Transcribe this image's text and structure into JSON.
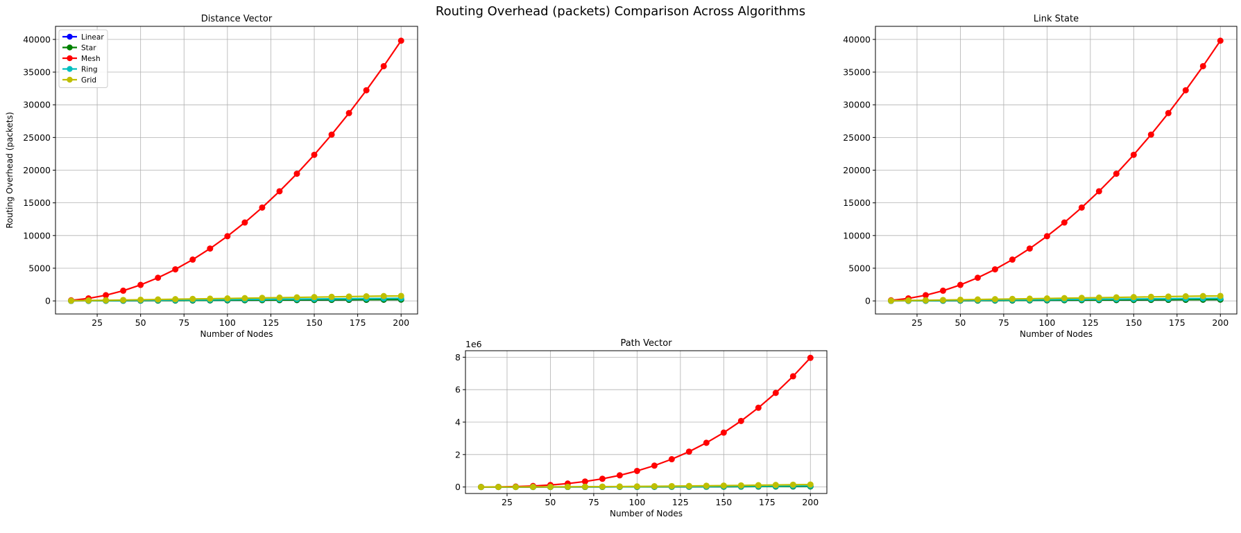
{
  "suptitle": "Routing Overhead (packets) Comparison Across Algorithms",
  "colors": {
    "Linear": "#0000ff",
    "Star": "#008000",
    "Mesh": "#ff0000",
    "Ring": "#00bfbf",
    "Grid": "#bfbf00"
  },
  "chart_data": [
    {
      "type": "line",
      "title": "Distance Vector",
      "xlabel": "Number of Nodes",
      "ylabel": "Routing Overhead (packets)",
      "xlim": [
        1,
        209.5
      ],
      "ylim": [
        -2000,
        42000
      ],
      "xticks": [
        25,
        50,
        75,
        100,
        125,
        150,
        175,
        200
      ],
      "yticks": [
        0,
        5000,
        10000,
        15000,
        20000,
        25000,
        30000,
        35000,
        40000
      ],
      "y_offset_label": "",
      "grid": true,
      "legend": "top-left",
      "x": [
        10,
        20,
        30,
        40,
        50,
        60,
        70,
        80,
        90,
        100,
        110,
        120,
        130,
        140,
        150,
        160,
        170,
        180,
        190,
        200
      ],
      "series": [
        {
          "name": "Linear",
          "values": [
            10,
            20,
            30,
            40,
            50,
            60,
            70,
            80,
            90,
            100,
            110,
            120,
            130,
            140,
            150,
            160,
            170,
            180,
            190,
            200
          ]
        },
        {
          "name": "Star",
          "values": [
            10,
            20,
            30,
            40,
            50,
            60,
            70,
            80,
            90,
            100,
            110,
            120,
            130,
            140,
            150,
            160,
            170,
            180,
            190,
            200
          ]
        },
        {
          "name": "Mesh",
          "values": [
            90,
            380,
            870,
            1560,
            2450,
            3540,
            4830,
            6320,
            8010,
            9900,
            11990,
            14280,
            16770,
            19460,
            22350,
            25440,
            28730,
            32220,
            35910,
            39800
          ]
        },
        {
          "name": "Ring",
          "values": [
            20,
            40,
            60,
            80,
            100,
            120,
            140,
            160,
            180,
            200,
            220,
            240,
            260,
            280,
            300,
            320,
            340,
            360,
            380,
            400
          ]
        },
        {
          "name": "Grid",
          "values": [
            30,
            70,
            100,
            140,
            180,
            220,
            260,
            300,
            340,
            380,
            420,
            460,
            500,
            540,
            580,
            620,
            660,
            700,
            740,
            760
          ]
        }
      ]
    },
    {
      "type": "line",
      "title": "Link State",
      "xlabel": "Number of Nodes",
      "ylabel": "",
      "xlim": [
        1,
        209.5
      ],
      "ylim": [
        -2000,
        42000
      ],
      "xticks": [
        25,
        50,
        75,
        100,
        125,
        150,
        175,
        200
      ],
      "yticks": [
        0,
        5000,
        10000,
        15000,
        20000,
        25000,
        30000,
        35000,
        40000
      ],
      "y_offset_label": "",
      "grid": true,
      "legend": "",
      "x": [
        10,
        20,
        30,
        40,
        50,
        60,
        70,
        80,
        90,
        100,
        110,
        120,
        130,
        140,
        150,
        160,
        170,
        180,
        190,
        200
      ],
      "series": [
        {
          "name": "Linear",
          "values": [
            10,
            20,
            30,
            40,
            50,
            60,
            70,
            80,
            90,
            100,
            110,
            120,
            130,
            140,
            150,
            160,
            170,
            180,
            190,
            200
          ]
        },
        {
          "name": "Star",
          "values": [
            10,
            20,
            30,
            40,
            50,
            60,
            70,
            80,
            90,
            100,
            110,
            120,
            130,
            140,
            150,
            160,
            170,
            180,
            190,
            200
          ]
        },
        {
          "name": "Mesh",
          "values": [
            90,
            380,
            870,
            1560,
            2450,
            3540,
            4830,
            6320,
            8010,
            9900,
            11990,
            14280,
            16770,
            19460,
            22350,
            25440,
            28730,
            32220,
            35910,
            39800
          ]
        },
        {
          "name": "Ring",
          "values": [
            20,
            40,
            60,
            80,
            100,
            120,
            140,
            160,
            180,
            200,
            220,
            240,
            260,
            280,
            300,
            320,
            340,
            360,
            380,
            400
          ]
        },
        {
          "name": "Grid",
          "values": [
            30,
            70,
            100,
            140,
            180,
            220,
            260,
            300,
            340,
            380,
            420,
            460,
            500,
            540,
            580,
            620,
            660,
            700,
            740,
            760
          ]
        }
      ]
    },
    {
      "type": "line",
      "title": "Path Vector",
      "xlabel": "Number of Nodes",
      "ylabel": "",
      "xlim": [
        1,
        209.5
      ],
      "ylim": [
        -400000,
        8400000
      ],
      "xticks": [
        25,
        50,
        75,
        100,
        125,
        150,
        175,
        200
      ],
      "yticks": [
        0,
        2000000,
        4000000,
        6000000,
        8000000
      ],
      "ytick_labels": [
        "0",
        "2",
        "4",
        "6",
        "8"
      ],
      "y_offset_label": "1e6",
      "grid": true,
      "legend": "",
      "x": [
        10,
        20,
        30,
        40,
        50,
        60,
        70,
        80,
        90,
        100,
        110,
        120,
        130,
        140,
        150,
        160,
        170,
        180,
        190,
        200
      ],
      "series": [
        {
          "name": "Linear",
          "values": [
            100,
            400,
            900,
            1600,
            2500,
            3600,
            4900,
            6400,
            8100,
            10000,
            12100,
            14400,
            16900,
            19600,
            22500,
            25600,
            28900,
            32400,
            36100,
            40000
          ]
        },
        {
          "name": "Star",
          "values": [
            100,
            400,
            900,
            1600,
            2500,
            3600,
            4900,
            6400,
            8100,
            10000,
            12100,
            14400,
            16900,
            19600,
            22500,
            25600,
            28900,
            32400,
            36100,
            40000
          ]
        },
        {
          "name": "Mesh",
          "values": [
            900,
            7600,
            26100,
            62400,
            122500,
            212400,
            338100,
            505600,
            720900,
            990000,
            1318900,
            1713600,
            2180100,
            2724400,
            3352500,
            4070400,
            4884100,
            5799600,
            6822900,
            7960000
          ]
        },
        {
          "name": "Ring",
          "values": [
            200,
            800,
            1800,
            3200,
            5000,
            7200,
            9800,
            12800,
            16200,
            20000,
            24200,
            28800,
            33800,
            39200,
            45000,
            51200,
            57800,
            64800,
            72200,
            80000
          ]
        },
        {
          "name": "Grid",
          "values": [
            300,
            1400,
            3000,
            5600,
            9000,
            13200,
            18200,
            24000,
            30600,
            38000,
            46200,
            55200,
            65000,
            75600,
            87000,
            99200,
            112200,
            126000,
            140600,
            152000
          ]
        }
      ]
    }
  ]
}
